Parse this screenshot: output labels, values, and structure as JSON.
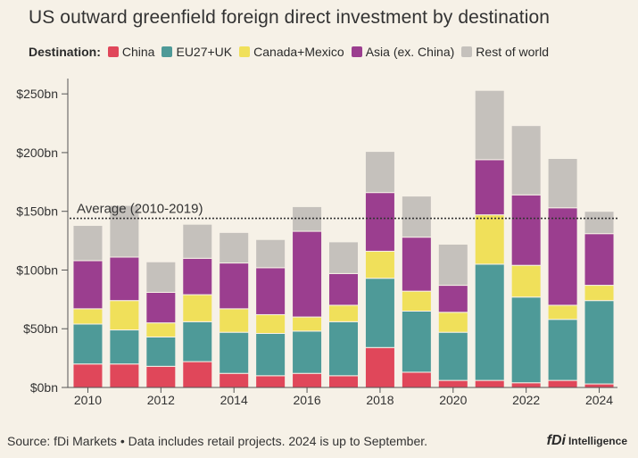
{
  "chart_data": {
    "type": "bar",
    "stacked": true,
    "title": "US outward greenfield foreign direct investment by destination",
    "legend_title": "Destination:",
    "years": [
      2010,
      2011,
      2012,
      2013,
      2014,
      2015,
      2016,
      2017,
      2018,
      2019,
      2020,
      2021,
      2022,
      2023,
      2024
    ],
    "x_tick_labels": [
      "2010",
      "2012",
      "2014",
      "2016",
      "2018",
      "2020",
      "2022",
      "2024"
    ],
    "x_tick_years": [
      2010,
      2012,
      2014,
      2016,
      2018,
      2020,
      2022,
      2024
    ],
    "y_tick_labels": [
      "$0bn",
      "$50bn",
      "$100bn",
      "$150bn",
      "$200bn",
      "$250bn"
    ],
    "y_tick_values": [
      0,
      50,
      100,
      150,
      200,
      250
    ],
    "ylim": [
      0,
      260
    ],
    "unit": "bn USD",
    "average": {
      "label": "Average (2010-2019)",
      "value": 144
    },
    "series": [
      {
        "name": "China",
        "color": "#e0475a",
        "values": [
          20,
          20,
          18,
          22,
          12,
          10,
          12,
          10,
          34,
          13,
          6,
          6,
          4,
          6,
          3
        ]
      },
      {
        "name": "EU27+UK",
        "color": "#4e9a98",
        "values": [
          34,
          29,
          25,
          34,
          35,
          36,
          36,
          46,
          59,
          52,
          41,
          99,
          73,
          52,
          71
        ]
      },
      {
        "name": "Canada+Mexico",
        "color": "#f0e05a",
        "values": [
          13,
          25,
          12,
          23,
          20,
          16,
          12,
          14,
          23,
          17,
          17,
          42,
          27,
          12,
          13
        ]
      },
      {
        "name": "Asia (ex. China)",
        "color": "#9b3e8f",
        "values": [
          41,
          37,
          26,
          31,
          39,
          40,
          73,
          27,
          50,
          46,
          23,
          47,
          60,
          83,
          44
        ]
      },
      {
        "name": "Rest of world",
        "color": "#c5c1bc",
        "values": [
          30,
          44,
          26,
          29,
          26,
          24,
          21,
          27,
          35,
          35,
          35,
          59,
          59,
          42,
          19
        ]
      }
    ]
  },
  "footer": {
    "source": "Source: fDi Markets • Data includes retail projects. 2024 is up to September.",
    "brand_mark": "fDi",
    "brand_name": "Intelligence"
  }
}
